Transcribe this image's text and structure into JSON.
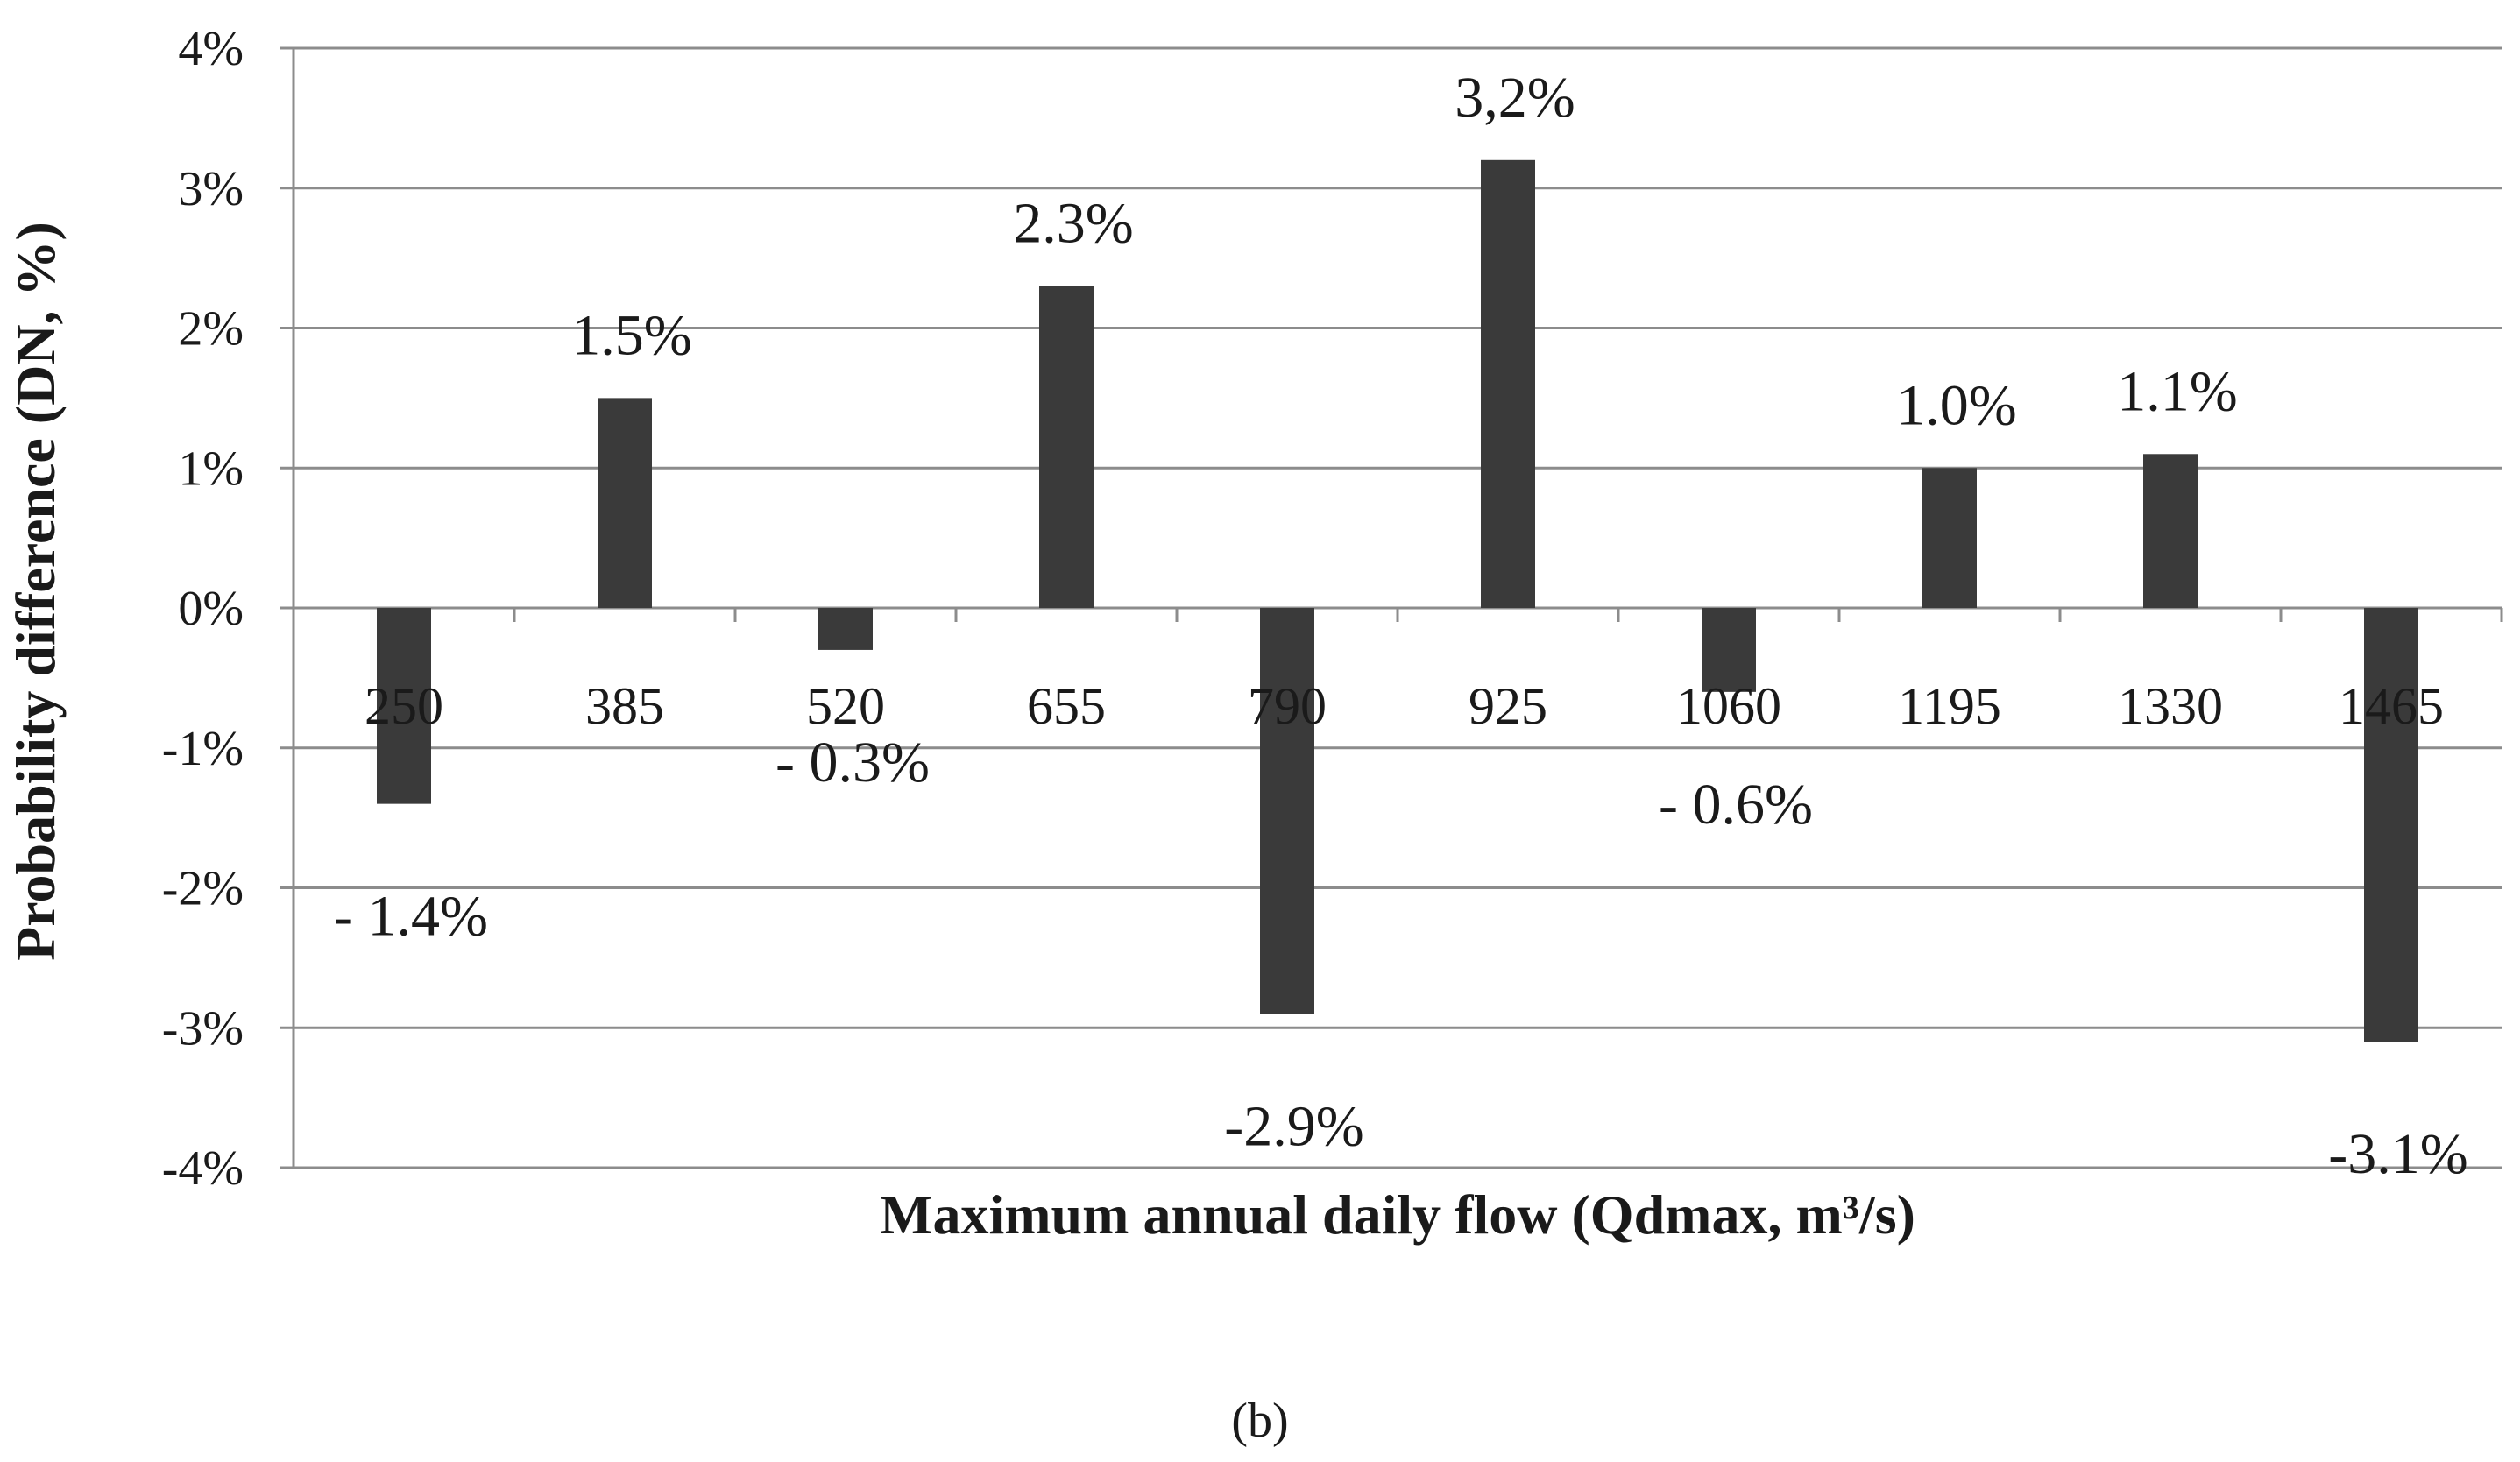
{
  "chart_data": {
    "type": "bar",
    "categories": [
      "250",
      "385",
      "520",
      "655",
      "790",
      "925",
      "1060",
      "1195",
      "1330",
      "1465"
    ],
    "values": [
      -1.4,
      1.5,
      -0.3,
      2.3,
      -2.9,
      3.2,
      -0.6,
      1.0,
      1.1,
      -3.1
    ],
    "data_labels": [
      "- 1.4%",
      "1.5%",
      "- 0.3%",
      "2.3%",
      "-2.9%",
      "3,2%",
      "- 0.6%",
      "1.0%",
      "1.1%",
      "-3.1%"
    ],
    "ylim": [
      -4,
      4
    ],
    "yticks": [
      4,
      3,
      2,
      1,
      0,
      -1,
      -2,
      -3,
      -4
    ],
    "ytick_labels": [
      "4%",
      "3%",
      "2%",
      "1%",
      "0%",
      "-1%",
      "-2%",
      "-3%",
      "-4%"
    ],
    "xlabel": "Maximum annual daily flow (Qdmax, m³/s)",
    "ylabel": "Probability difference (DN, %)",
    "grid": true,
    "bar_color": "#3a3a3a",
    "grid_color": "#8c8c8c"
  },
  "caption": "(b)"
}
